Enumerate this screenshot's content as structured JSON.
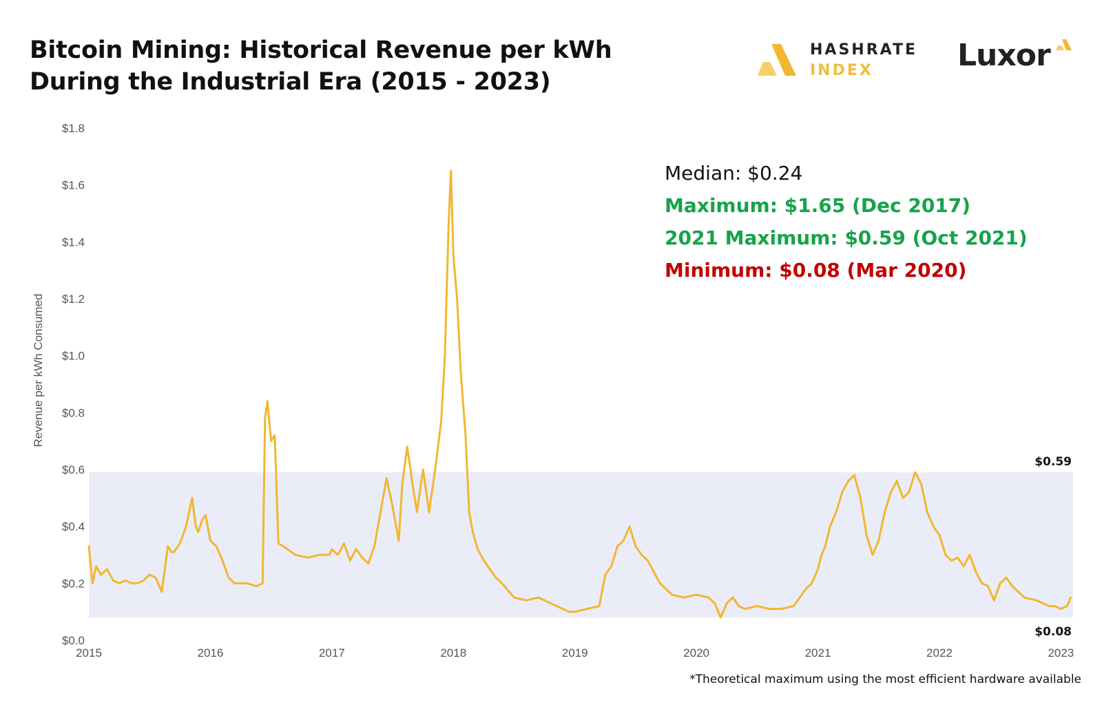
{
  "title": {
    "line1": "Bitcoin Mining: Historical Revenue per kWh",
    "line2": "During the Industrial Era (2015 - 2023)"
  },
  "logos": {
    "hashrate_line1": "HASHRATE",
    "hashrate_line2": "INDEX",
    "luxor": "Luxor"
  },
  "stats": {
    "median": "Median: $0.24",
    "maximum": "Maximum: $1.65 (Dec 2017)",
    "max2021": "2021 Maximum: $0.59 (Oct 2021)",
    "minimum": "Minimum: $0.08 (Mar 2020)"
  },
  "footnote": "*Theoretical maximum using the most efficient hardware available",
  "colors": {
    "line": "#f2b630",
    "band": "#eaedf8",
    "max_text": "#16a34a",
    "min_text": "#c00000"
  },
  "chart_data": {
    "type": "line",
    "title": "Bitcoin Mining: Historical Revenue per kWh During the Industrial Era (2015 - 2023)",
    "xlabel": "",
    "ylabel": "Revenue per kWh Consumed",
    "xlim": [
      2015,
      2023.1
    ],
    "ylim": [
      0,
      1.8
    ],
    "x_ticks": [
      2015,
      2016,
      2017,
      2018,
      2019,
      2020,
      2021,
      2022,
      2023
    ],
    "y_ticks": [
      0,
      0.2,
      0.4,
      0.6,
      0.8,
      1.0,
      1.2,
      1.4,
      1.6,
      1.8
    ],
    "y_tick_labels": [
      "$0.0",
      "$0.2",
      "$0.4",
      "$0.6",
      "$0.8",
      "$1.0",
      "$1.2",
      "$1.4",
      "$1.6",
      "$1.8"
    ],
    "band": {
      "low": 0.08,
      "high": 0.59,
      "low_label": "$0.08",
      "high_label": "$0.59"
    },
    "grid": false,
    "series": [
      {
        "x": [
          2015.0,
          2015.03,
          2015.06,
          2015.1,
          2015.15,
          2015.2,
          2015.25,
          2015.3,
          2015.35,
          2015.4,
          2015.45,
          2015.5,
          2015.55,
          2015.6,
          2015.65,
          2015.68,
          2015.7,
          2015.75,
          2015.8,
          2015.85,
          2015.88,
          2015.9,
          2015.93,
          2015.96,
          2016.0,
          2016.05,
          2016.1,
          2016.15,
          2016.2,
          2016.3,
          2016.38,
          2016.43,
          2016.45,
          2016.47,
          2016.5,
          2016.53,
          2016.56,
          2016.6,
          2016.7,
          2016.8,
          2016.9,
          2016.98,
          2017.0,
          2017.05,
          2017.1,
          2017.15,
          2017.2,
          2017.25,
          2017.3,
          2017.35,
          2017.4,
          2017.45,
          2017.5,
          2017.55,
          2017.58,
          2017.62,
          2017.66,
          2017.7,
          2017.75,
          2017.8,
          2017.85,
          2017.9,
          2017.93,
          2017.96,
          2017.98,
          2018.0,
          2018.03,
          2018.06,
          2018.1,
          2018.13,
          2018.16,
          2018.2,
          2018.25,
          2018.3,
          2018.35,
          2018.4,
          2018.5,
          2018.6,
          2018.7,
          2018.8,
          2018.9,
          2018.95,
          2019.0,
          2019.1,
          2019.2,
          2019.25,
          2019.3,
          2019.35,
          2019.4,
          2019.45,
          2019.5,
          2019.55,
          2019.6,
          2019.7,
          2019.8,
          2019.9,
          2020.0,
          2020.1,
          2020.15,
          2020.2,
          2020.25,
          2020.3,
          2020.35,
          2020.4,
          2020.5,
          2020.6,
          2020.7,
          2020.8,
          2020.85,
          2020.9,
          2020.95,
          2021.0,
          2021.03,
          2021.06,
          2021.1,
          2021.15,
          2021.2,
          2021.25,
          2021.3,
          2021.35,
          2021.4,
          2021.45,
          2021.5,
          2021.55,
          2021.6,
          2021.65,
          2021.7,
          2021.75,
          2021.8,
          2021.85,
          2021.9,
          2021.95,
          2022.0,
          2022.05,
          2022.1,
          2022.15,
          2022.2,
          2022.25,
          2022.3,
          2022.35,
          2022.4,
          2022.45,
          2022.5,
          2022.55,
          2022.6,
          2022.7,
          2022.8,
          2022.9,
          2022.95,
          2023.0,
          2023.05,
          2023.08
        ],
        "y": [
          0.33,
          0.2,
          0.26,
          0.23,
          0.25,
          0.21,
          0.2,
          0.21,
          0.2,
          0.2,
          0.21,
          0.23,
          0.22,
          0.17,
          0.33,
          0.31,
          0.31,
          0.34,
          0.4,
          0.5,
          0.4,
          0.38,
          0.42,
          0.44,
          0.35,
          0.33,
          0.28,
          0.22,
          0.2,
          0.2,
          0.19,
          0.2,
          0.78,
          0.84,
          0.7,
          0.72,
          0.34,
          0.33,
          0.3,
          0.29,
          0.3,
          0.3,
          0.32,
          0.3,
          0.34,
          0.28,
          0.32,
          0.29,
          0.27,
          0.33,
          0.45,
          0.57,
          0.47,
          0.35,
          0.55,
          0.68,
          0.56,
          0.45,
          0.6,
          0.45,
          0.6,
          0.77,
          1.0,
          1.45,
          1.65,
          1.35,
          1.2,
          0.95,
          0.72,
          0.45,
          0.38,
          0.32,
          0.28,
          0.25,
          0.22,
          0.2,
          0.15,
          0.14,
          0.15,
          0.13,
          0.11,
          0.1,
          0.1,
          0.11,
          0.12,
          0.23,
          0.26,
          0.33,
          0.35,
          0.4,
          0.33,
          0.3,
          0.28,
          0.2,
          0.16,
          0.15,
          0.16,
          0.15,
          0.13,
          0.08,
          0.13,
          0.15,
          0.12,
          0.11,
          0.12,
          0.11,
          0.11,
          0.12,
          0.15,
          0.18,
          0.2,
          0.25,
          0.3,
          0.33,
          0.4,
          0.45,
          0.52,
          0.56,
          0.58,
          0.5,
          0.37,
          0.3,
          0.35,
          0.45,
          0.52,
          0.56,
          0.5,
          0.52,
          0.59,
          0.55,
          0.45,
          0.4,
          0.37,
          0.3,
          0.28,
          0.29,
          0.26,
          0.3,
          0.24,
          0.2,
          0.19,
          0.14,
          0.2,
          0.22,
          0.19,
          0.15,
          0.14,
          0.12,
          0.12,
          0.11,
          0.12,
          0.15
        ]
      }
    ]
  }
}
